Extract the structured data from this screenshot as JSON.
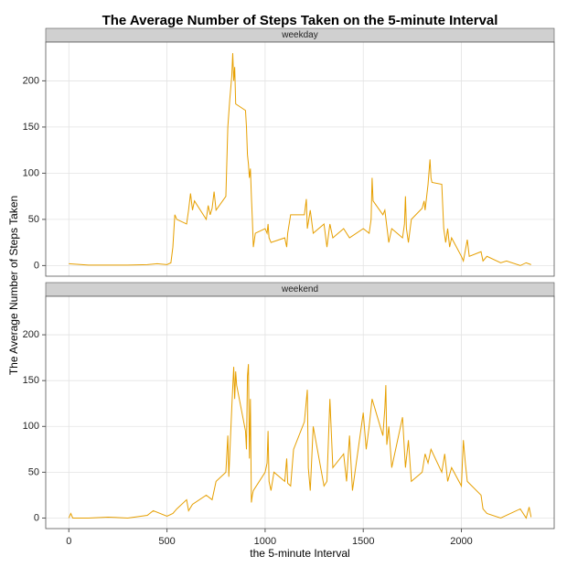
{
  "figure": {
    "title": "The Average Number of Steps Taken on the 5-minute Interval",
    "xlabel": "the 5-minute Interval",
    "ylabel": "The Average Number of Steps Taken"
  },
  "chart_data": [
    {
      "type": "line",
      "strip": "weekday",
      "x": [
        0,
        100,
        200,
        300,
        400,
        450,
        500,
        520,
        530,
        540,
        550,
        600,
        610,
        620,
        630,
        640,
        700,
        710,
        720,
        730,
        740,
        750,
        800,
        810,
        820,
        830,
        835,
        840,
        845,
        850,
        900,
        905,
        910,
        915,
        920,
        925,
        930,
        935,
        940,
        950,
        1000,
        1010,
        1015,
        1020,
        1030,
        1100,
        1110,
        1115,
        1130,
        1150,
        1200,
        1210,
        1215,
        1230,
        1245,
        1300,
        1315,
        1330,
        1345,
        1400,
        1430,
        1500,
        1530,
        1540,
        1545,
        1550,
        1600,
        1610,
        1630,
        1645,
        1700,
        1710,
        1715,
        1720,
        1730,
        1745,
        1800,
        1810,
        1815,
        1830,
        1840,
        1845,
        1850,
        1900,
        1910,
        1920,
        1930,
        1940,
        1950,
        2000,
        2010,
        2030,
        2040,
        2100,
        2110,
        2130,
        2200,
        2230,
        2300,
        2330,
        2355
      ],
      "series": [
        {
          "color": "#E69F00",
          "values": [
            2,
            0.5,
            0.5,
            0.5,
            1,
            2,
            1,
            3,
            20,
            55,
            50,
            45,
            60,
            78,
            60,
            70,
            50,
            65,
            55,
            62,
            80,
            60,
            75,
            150,
            180,
            205,
            230,
            200,
            215,
            175,
            168,
            150,
            120,
            110,
            95,
            105,
            75,
            50,
            20,
            35,
            40,
            35,
            45,
            30,
            25,
            30,
            20,
            35,
            55,
            55,
            55,
            72,
            40,
            60,
            35,
            45,
            20,
            45,
            30,
            40,
            30,
            40,
            35,
            50,
            95,
            70,
            55,
            60,
            25,
            40,
            30,
            45,
            75,
            40,
            25,
            50,
            62,
            70,
            60,
            88,
            115,
            95,
            90,
            88,
            40,
            25,
            40,
            20,
            30,
            10,
            5,
            28,
            10,
            15,
            5,
            10,
            3,
            5,
            0,
            3,
            1
          ]
        }
      ],
      "xlim": [
        -117.75,
        2472.75
      ],
      "xticks": [
        0,
        500,
        1000,
        1500,
        2000
      ],
      "ylim": [
        -11.5,
        242
      ],
      "yticks": [
        0,
        50,
        100,
        150,
        200
      ],
      "grid": true
    },
    {
      "type": "line",
      "strip": "weekend",
      "x": [
        0,
        10,
        20,
        100,
        200,
        300,
        400,
        430,
        500,
        530,
        550,
        600,
        610,
        630,
        700,
        730,
        750,
        800,
        810,
        815,
        820,
        830,
        840,
        845,
        850,
        855,
        900,
        905,
        910,
        915,
        920,
        925,
        930,
        935,
        940,
        1000,
        1010,
        1015,
        1020,
        1030,
        1045,
        1100,
        1110,
        1115,
        1130,
        1145,
        1200,
        1215,
        1220,
        1230,
        1245,
        1300,
        1315,
        1330,
        1345,
        1400,
        1415,
        1430,
        1445,
        1500,
        1515,
        1530,
        1545,
        1600,
        1610,
        1615,
        1620,
        1630,
        1645,
        1700,
        1715,
        1730,
        1745,
        1800,
        1815,
        1830,
        1845,
        1900,
        1915,
        1930,
        1950,
        2000,
        2010,
        2020,
        2030,
        2100,
        2110,
        2130,
        2200,
        2230,
        2300,
        2330,
        2345,
        2355
      ],
      "series": [
        {
          "color": "#E69F00",
          "values": [
            0,
            5,
            0,
            0,
            1,
            0,
            3,
            8,
            2,
            5,
            10,
            20,
            8,
            15,
            25,
            20,
            40,
            50,
            90,
            45,
            70,
            120,
            165,
            130,
            160,
            145,
            95,
            75,
            155,
            168,
            65,
            130,
            17,
            25,
            30,
            50,
            60,
            95,
            40,
            30,
            50,
            40,
            65,
            38,
            35,
            75,
            105,
            140,
            55,
            30,
            100,
            35,
            40,
            130,
            55,
            70,
            40,
            90,
            30,
            115,
            75,
            100,
            130,
            90,
            120,
            145,
            80,
            100,
            55,
            110,
            55,
            85,
            40,
            50,
            70,
            60,
            75,
            50,
            70,
            40,
            55,
            35,
            85,
            60,
            40,
            25,
            10,
            5,
            0,
            3,
            10,
            0,
            12,
            1
          ]
        }
      ],
      "xlim": [
        -117.75,
        2472.75
      ],
      "xticks": [
        0,
        500,
        1000,
        1500,
        2000
      ],
      "ylim": [
        -11.5,
        242
      ],
      "yticks": [
        0,
        50,
        100,
        150,
        200
      ],
      "grid": true
    }
  ]
}
